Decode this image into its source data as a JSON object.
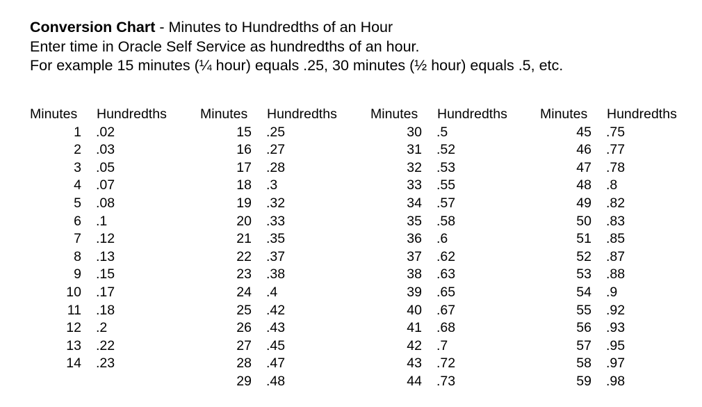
{
  "header": {
    "title_bold": "Conversion Chart",
    "title_rest": " - Minutes to Hundredths of an Hour",
    "line2": "Enter time in Oracle Self Service as hundredths of an hour.",
    "line3": "For example 15 minutes (¼ hour) equals .25, 30 minutes (½ hour) equals .5, etc."
  },
  "table": {
    "minutes_header": "Minutes",
    "hundredths_header": "Hundredths",
    "groups": [
      {
        "rows": [
          {
            "minutes": "1",
            "hundredths": ".02"
          },
          {
            "minutes": "2",
            "hundredths": ".03"
          },
          {
            "minutes": "3",
            "hundredths": ".05"
          },
          {
            "minutes": "4",
            "hundredths": ".07"
          },
          {
            "minutes": "5",
            "hundredths": ".08"
          },
          {
            "minutes": "6",
            "hundredths": ".1"
          },
          {
            "minutes": "7",
            "hundredths": ".12"
          },
          {
            "minutes": "8",
            "hundredths": ".13"
          },
          {
            "minutes": "9",
            "hundredths": ".15"
          },
          {
            "minutes": "10",
            "hundredths": ".17"
          },
          {
            "minutes": "11",
            "hundredths": ".18"
          },
          {
            "minutes": "12",
            "hundredths": ".2"
          },
          {
            "minutes": "13",
            "hundredths": ".22"
          },
          {
            "minutes": "14",
            "hundredths": ".23"
          }
        ]
      },
      {
        "rows": [
          {
            "minutes": "15",
            "hundredths": ".25"
          },
          {
            "minutes": "16",
            "hundredths": ".27"
          },
          {
            "minutes": "17",
            "hundredths": ".28"
          },
          {
            "minutes": "18",
            "hundredths": ".3"
          },
          {
            "minutes": "19",
            "hundredths": ".32"
          },
          {
            "minutes": "20",
            "hundredths": ".33"
          },
          {
            "minutes": "21",
            "hundredths": ".35"
          },
          {
            "minutes": "22",
            "hundredths": ".37"
          },
          {
            "minutes": "23",
            "hundredths": ".38"
          },
          {
            "minutes": "24",
            "hundredths": ".4"
          },
          {
            "minutes": "25",
            "hundredths": ".42"
          },
          {
            "minutes": "26",
            "hundredths": ".43"
          },
          {
            "minutes": "27",
            "hundredths": ".45"
          },
          {
            "minutes": "28",
            "hundredths": ".47"
          },
          {
            "minutes": "29",
            "hundredths": ".48"
          }
        ]
      },
      {
        "rows": [
          {
            "minutes": "30",
            "hundredths": ".5"
          },
          {
            "minutes": "31",
            "hundredths": ".52"
          },
          {
            "minutes": "32",
            "hundredths": ".53"
          },
          {
            "minutes": "33",
            "hundredths": ".55"
          },
          {
            "minutes": "34",
            "hundredths": ".57"
          },
          {
            "minutes": "35",
            "hundredths": ".58"
          },
          {
            "minutes": "36",
            "hundredths": ".6"
          },
          {
            "minutes": "37",
            "hundredths": ".62"
          },
          {
            "minutes": "38",
            "hundredths": ".63"
          },
          {
            "minutes": "39",
            "hundredths": ".65"
          },
          {
            "minutes": "40",
            "hundredths": ".67"
          },
          {
            "minutes": "41",
            "hundredths": ".68"
          },
          {
            "minutes": "42",
            "hundredths": ".7"
          },
          {
            "minutes": "43",
            "hundredths": ".72"
          },
          {
            "minutes": "44",
            "hundredths": ".73"
          }
        ]
      },
      {
        "rows": [
          {
            "minutes": "45",
            "hundredths": ".75"
          },
          {
            "minutes": "46",
            "hundredths": ".77"
          },
          {
            "minutes": "47",
            "hundredths": ".78"
          },
          {
            "minutes": "48",
            "hundredths": ".8"
          },
          {
            "minutes": "49",
            "hundredths": ".82"
          },
          {
            "minutes": "50",
            "hundredths": ".83"
          },
          {
            "minutes": "51",
            "hundredths": ".85"
          },
          {
            "minutes": "52",
            "hundredths": ".87"
          },
          {
            "minutes": "53",
            "hundredths": ".88"
          },
          {
            "minutes": "54",
            "hundredths": ".9"
          },
          {
            "minutes": "55",
            "hundredths": ".92"
          },
          {
            "minutes": "56",
            "hundredths": ".93"
          },
          {
            "minutes": "57",
            "hundredths": ".95"
          },
          {
            "minutes": "58",
            "hundredths": ".97"
          },
          {
            "minutes": "59",
            "hundredths": ".98"
          }
        ]
      }
    ]
  }
}
